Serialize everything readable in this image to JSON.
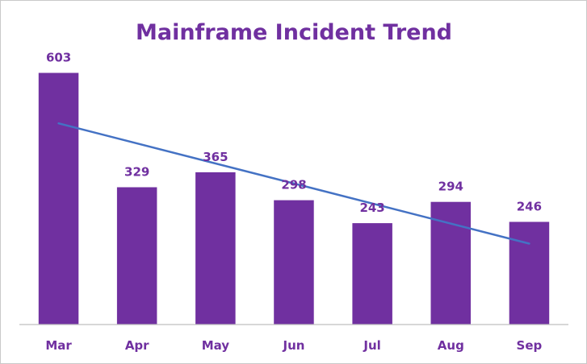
{
  "chart_data": {
    "type": "bar",
    "title": "Mainframe Incident Trend",
    "categories": [
      "Mar",
      "Apr",
      "May",
      "Jun",
      "Jul",
      "Aug",
      "Sep"
    ],
    "values": [
      603,
      329,
      365,
      298,
      243,
      294,
      246
    ],
    "trendline": {
      "type": "linear",
      "start": 482,
      "end": 194
    },
    "xlabel": "",
    "ylabel": "",
    "ylim": [
      0,
      660
    ],
    "grid": false,
    "legend": "none",
    "colors": {
      "bar": "#7030A0",
      "label": "#7030A0",
      "trendline": "#4472C4",
      "axis": "#bfbfbf"
    }
  }
}
